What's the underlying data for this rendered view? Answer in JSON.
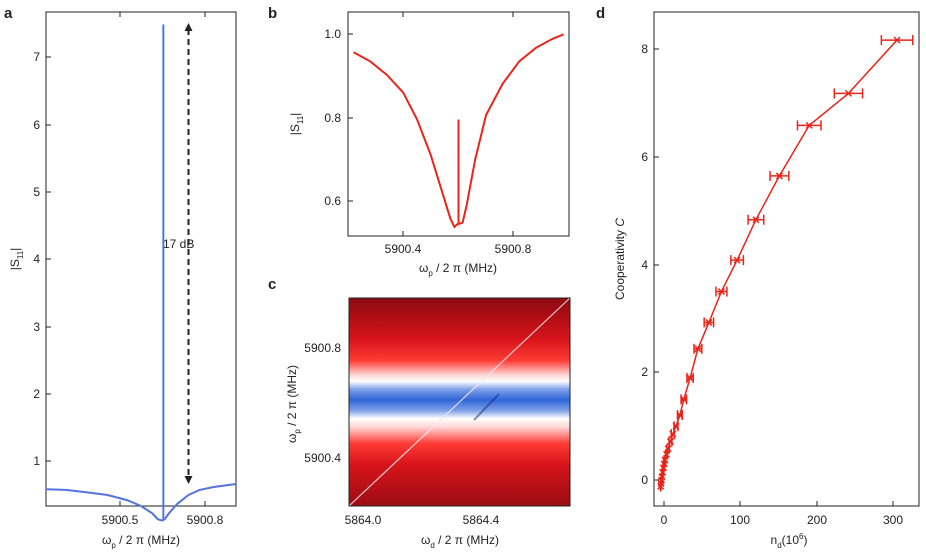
{
  "figure": {
    "panels": [
      {
        "id": "a",
        "label": "a"
      },
      {
        "id": "b",
        "label": "b"
      },
      {
        "id": "c",
        "label": "c"
      },
      {
        "id": "d",
        "label": "d"
      }
    ]
  },
  "colors": {
    "blue": "#5572e0",
    "red": "#e8251b",
    "dark_red": "#8b0a0f",
    "white": "#ffffff",
    "map_blue": "#2f66d8"
  },
  "chart_data": [
    {
      "panel": "a",
      "type": "line",
      "xlabel_symbol": "ω",
      "xlabel_sub": "p",
      "xlabel_rest": " / 2 π (MHz)",
      "ylabel_main": "|S",
      "ylabel_sub": "11",
      "ylabel_end": "|",
      "xlim": [
        5900.18,
        5900.86
      ],
      "ylim": [
        0.7,
        7.45
      ],
      "xticks": [
        "5900.5",
        "5900.8"
      ],
      "xtick_values": [
        5900.5,
        5900.8
      ],
      "yticks": [
        "1",
        "2",
        "3",
        "4",
        "5",
        "6",
        "7"
      ],
      "ytick_values": [
        1,
        2,
        3,
        4,
        5,
        6,
        7
      ],
      "annotation": "17 dB",
      "annotation_arrow_y": [
        1.0,
        7.3
      ],
      "annotation_arrow_x": 5900.69,
      "peak": {
        "x": 5900.6,
        "y": 7.28
      },
      "series": [
        {
          "name": "|S11|",
          "color": "blue",
          "x": [
            5900.18,
            5900.25,
            5900.32,
            5900.4,
            5900.47,
            5900.52,
            5900.56,
            5900.58,
            5900.595,
            5900.6,
            5900.605,
            5900.62,
            5900.65,
            5900.69,
            5900.73,
            5900.78,
            5900.82,
            5900.86
          ],
          "y": [
            0.93,
            0.92,
            0.89,
            0.85,
            0.78,
            0.7,
            0.6,
            0.52,
            0.5,
            0.51,
            0.52,
            0.6,
            0.73,
            0.85,
            0.92,
            0.96,
            0.98,
            1.0
          ]
        }
      ]
    },
    {
      "panel": "b",
      "type": "line",
      "xlabel_symbol": "ω",
      "xlabel_sub": "p",
      "xlabel_rest": " / 2 π (MHz)",
      "ylabel_main": "|S",
      "ylabel_sub": "11",
      "ylabel_end": "|",
      "xlim": [
        5900.2,
        5901.0
      ],
      "ylim": [
        0.53,
        1.03
      ],
      "xticks": [
        "5900.4",
        "5900.8"
      ],
      "xtick_values": [
        5900.4,
        5900.8
      ],
      "yticks": [
        "0.6",
        "0.8",
        "1.0"
      ],
      "ytick_values": [
        0.6,
        0.8,
        1.0
      ],
      "peak": {
        "x": 5900.6,
        "y": 0.79
      },
      "series": [
        {
          "name": "|S11|",
          "color": "red",
          "x": [
            5900.22,
            5900.28,
            5900.34,
            5900.4,
            5900.45,
            5900.5,
            5900.54,
            5900.57,
            5900.585,
            5900.595,
            5900.605,
            5900.615,
            5900.63,
            5900.66,
            5900.7,
            5900.76,
            5900.82,
            5900.88,
            5900.94,
            5900.98
          ],
          "y": [
            0.94,
            0.92,
            0.89,
            0.85,
            0.79,
            0.71,
            0.63,
            0.57,
            0.55,
            0.556,
            0.558,
            0.56,
            0.6,
            0.7,
            0.8,
            0.87,
            0.92,
            0.95,
            0.97,
            0.98
          ]
        }
      ]
    },
    {
      "panel": "c",
      "type": "heatmap",
      "xlabel_symbol": "ω",
      "xlabel_sub": "d",
      "xlabel_rest": " / 2 π (MHz)",
      "ylabel_symbol": "ω",
      "ylabel_sub": "p",
      "ylabel_rest": " / 2 π (MHz)",
      "xlim": [
        5863.98,
        5864.68
      ],
      "ylim": [
        5900.22,
        5900.98
      ],
      "xticks": [
        "5864.0",
        "5864.4"
      ],
      "xtick_values": [
        5864.0,
        5864.4
      ],
      "yticks": [
        "5900.4",
        "5900.8"
      ],
      "ytick_values": [
        5900.4,
        5900.8
      ],
      "resonance_center": 5900.6,
      "diagonal_line": [
        [
          5863.98,
          5900.22
        ],
        [
          5864.68,
          5900.98
        ]
      ]
    },
    {
      "panel": "d",
      "type": "scatter",
      "xlabel_main": "n",
      "xlabel_sub": "d",
      "xlabel_rest": "(10",
      "xlabel_sup": "6",
      "xlabel_end": ")",
      "ylabel": "Cooperativity",
      "ylabel_italic": "C",
      "xlim": [
        -8,
        330
      ],
      "ylim": [
        -0.3,
        8.5
      ],
      "xticks": [
        "0",
        "100",
        "200",
        "300"
      ],
      "xtick_values": [
        0,
        100,
        200,
        300
      ],
      "yticks": [
        "0",
        "2",
        "4",
        "6",
        "8"
      ],
      "ytick_values": [
        0,
        2,
        4,
        6,
        8
      ],
      "series": [
        {
          "name": "Cooperativity",
          "color": "red",
          "x": [
            0.5,
            1,
            1.5,
            2,
            3,
            4,
            5,
            6,
            8,
            10,
            13,
            16,
            20,
            25,
            30,
            38,
            48,
            62,
            78,
            98,
            122,
            152,
            190,
            240,
            302
          ],
          "y": [
            0.05,
            0.1,
            0.16,
            0.22,
            0.3,
            0.38,
            0.45,
            0.52,
            0.62,
            0.72,
            0.85,
            0.98,
            1.12,
            1.32,
            1.6,
            1.98,
            2.5,
            2.97,
            3.52,
            4.08,
            4.8,
            5.58,
            6.48,
            7.05,
            8.0
          ],
          "xerr": [
            0.3,
            0.3,
            0.4,
            0.4,
            0.5,
            0.6,
            0.8,
            1,
            1.2,
            1.5,
            1.8,
            2,
            2.5,
            3,
            3.5,
            4,
            5,
            6,
            7,
            8,
            10,
            12,
            15,
            18,
            20
          ]
        }
      ]
    }
  ]
}
